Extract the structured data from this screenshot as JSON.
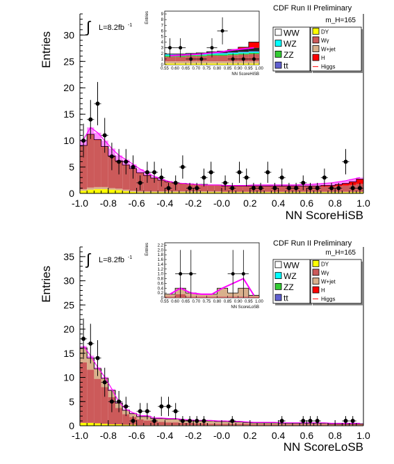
{
  "chart_data": [
    {
      "type": "area",
      "subtype": "stacked-histogram",
      "title": "CDF Run II Preliminary",
      "mass_label": "m_H=165",
      "lumi_label": "L=8.2fb",
      "lumi_sup": "-1",
      "xlabel": "NN ScoreHiSB",
      "ylabel": "Entries",
      "xlim": [
        -1.0,
        1.0
      ],
      "ylim": [
        0,
        34
      ],
      "xticks": [
        "-1.0",
        "-0.8",
        "-0.6",
        "-0.4",
        "-0.2",
        "-0.0",
        "0.2",
        "0.4",
        "0.6",
        "0.8",
        "1.0"
      ],
      "yticks": [
        "0",
        "5",
        "10",
        "15",
        "20",
        "25",
        "30"
      ],
      "bins": 40,
      "series": [
        {
          "name": "DY",
          "color": "#ffff00",
          "values": [
            0.5,
            0.7,
            0.8,
            0.8,
            0.7,
            0.6,
            0.4,
            0.3,
            0.2,
            0.2,
            0.2,
            0.2,
            0.2,
            0.2,
            0.2,
            0.2,
            0.2,
            0.2,
            0.2,
            0.2,
            0.2,
            0.2,
            0.2,
            0.2,
            0.2,
            0.2,
            0.2,
            0.2,
            0.2,
            0.2,
            0.2,
            0.2,
            0.2,
            0.2,
            0.2,
            0.2,
            0.2,
            0.2,
            0.2,
            0.2
          ]
        },
        {
          "name": "W+jet",
          "color": "#d9b08c",
          "values": [
            0.3,
            0.4,
            0.4,
            0.4,
            0.3,
            0.3,
            0.3,
            0.2,
            0.2,
            0.2,
            0.2,
            0.2,
            0.2,
            0.2,
            0.2,
            0.2,
            0.2,
            0.2,
            0.2,
            0.2,
            0.1,
            0.1,
            0.1,
            0.1,
            0.1,
            0.1,
            0.1,
            0.1,
            0.1,
            0.1,
            0.1,
            0.1,
            0.1,
            0.1,
            0.1,
            0.1,
            0.1,
            0.1,
            0.1,
            0.1
          ]
        },
        {
          "name": "WW",
          "color": "#cc5a5a",
          "values": [
            8.2,
            10.0,
            8.9,
            7.6,
            6.0,
            5.2,
            4.6,
            4.1,
            3.4,
            2.9,
            2.4,
            2.0,
            1.7,
            1.5,
            1.4,
            1.3,
            1.2,
            1.2,
            1.1,
            1.1,
            1.0,
            1.0,
            1.0,
            1.0,
            1.0,
            1.0,
            1.0,
            1.0,
            1.0,
            1.0,
            1.0,
            1.0,
            1.0,
            1.0,
            1.0,
            1.0,
            1.1,
            1.2,
            1.3,
            1.5
          ]
        },
        {
          "name": "H",
          "color": "#ff0000",
          "values": [
            0.1,
            0.1,
            0.1,
            0.1,
            0.1,
            0.1,
            0.1,
            0.1,
            0.1,
            0.1,
            0.1,
            0.1,
            0.1,
            0.1,
            0.1,
            0.1,
            0.1,
            0.1,
            0.1,
            0.1,
            0.1,
            0.1,
            0.1,
            0.1,
            0.1,
            0.1,
            0.1,
            0.1,
            0.1,
            0.1,
            0.1,
            0.1,
            0.1,
            0.1,
            0.2,
            0.2,
            0.3,
            0.4,
            0.6,
            0.9
          ]
        }
      ],
      "signal": {
        "name": "Higgs",
        "color": "#ff00ff",
        "values": [
          10.2,
          12.5,
          11.5,
          10.0,
          8.5,
          7.2,
          6.4,
          5.5,
          4.6,
          3.9,
          3.2,
          2.7,
          2.3,
          2.0,
          1.9,
          1.8,
          1.7,
          1.6,
          1.6,
          1.6,
          1.5,
          1.5,
          1.5,
          1.5,
          1.6,
          1.6,
          1.6,
          1.6,
          1.6,
          1.6,
          1.6,
          1.7,
          1.7,
          1.8,
          1.9,
          2.0,
          2.2,
          2.4,
          2.7,
          3.0
        ]
      },
      "data_points": {
        "x": [
          -0.975,
          -0.925,
          -0.875,
          -0.825,
          -0.775,
          -0.725,
          -0.675,
          -0.625,
          -0.575,
          -0.525,
          -0.475,
          -0.425,
          -0.375,
          -0.325,
          -0.275,
          -0.225,
          -0.175,
          -0.125,
          -0.075,
          -0.025,
          0.025,
          0.075,
          0.125,
          0.175,
          0.225,
          0.275,
          0.325,
          0.375,
          0.425,
          0.475,
          0.525,
          0.575,
          0.625,
          0.675,
          0.725,
          0.775,
          0.825,
          0.875,
          0.925,
          0.975
        ],
        "y": [
          10,
          14,
          17,
          11,
          7,
          6,
          6,
          5,
          2,
          4,
          4,
          3,
          1,
          2,
          5,
          1,
          1,
          3,
          4,
          0,
          2,
          1,
          4,
          3,
          1,
          1,
          4,
          1,
          3,
          1,
          1,
          2,
          1,
          1,
          3,
          1,
          1,
          6,
          1,
          1
        ],
        "err": [
          3.2,
          3.7,
          4.1,
          3.3,
          2.6,
          2.4,
          2.4,
          2.2,
          1.4,
          2.0,
          2.0,
          1.7,
          1.0,
          1.4,
          2.2,
          1.0,
          1.0,
          1.7,
          2.0,
          0,
          1.4,
          1.0,
          2.0,
          1.7,
          1.0,
          1.0,
          2.0,
          1.0,
          1.7,
          1.0,
          1.0,
          1.4,
          1.0,
          1.0,
          1.7,
          1.0,
          1.0,
          2.4,
          1.0,
          1.0
        ]
      },
      "inset": {
        "ylabel": "Entries",
        "xlabel": "NN ScoreHiSB",
        "xlim": [
          0.55,
          1.0
        ],
        "ylim": [
          0,
          9.5
        ],
        "xticks": [
          "0.55",
          "0.60",
          "0.65",
          "0.70",
          "0.75",
          "0.80",
          "0.85",
          "0.90",
          "0.95",
          "1.00"
        ],
        "yticks": [
          "0",
          "1",
          "2",
          "3",
          "4",
          "5",
          "6",
          "7",
          "8",
          "9"
        ],
        "bins": 9,
        "series": [
          {
            "name": "DY",
            "color": "#ffff00",
            "values": [
              0.2,
              0.2,
              0.2,
              0.2,
              0.2,
              0.2,
              0.2,
              0.2,
              0.2
            ]
          },
          {
            "name": "W+jet",
            "color": "#d9b08c",
            "values": [
              0.4,
              0.4,
              0.4,
              0.4,
              0.4,
              0.4,
              0.4,
              0.4,
              0.4
            ]
          },
          {
            "name": "WW",
            "color": "#cc5a5a",
            "values": [
              0.8,
              0.8,
              0.9,
              0.9,
              1.0,
              1.0,
              1.1,
              1.2,
              1.3
            ]
          },
          {
            "name": "ZZ",
            "color": "#33cc33",
            "values": [
              0.2,
              0.2,
              0.2,
              0.2,
              0.2,
              0.2,
              0.2,
              0.2,
              0.2
            ]
          },
          {
            "name": "WZ",
            "color": "#00ffff",
            "values": [
              0.2,
              0.2,
              0.2,
              0.2,
              0.2,
              0.2,
              0.2,
              0.2,
              0.2
            ]
          },
          {
            "name": "tt",
            "color": "#6060d0",
            "values": [
              0.1,
              0.1,
              0.1,
              0.1,
              0.1,
              0.1,
              0.1,
              0.1,
              0.1
            ]
          },
          {
            "name": "WW top",
            "color": "#222222",
            "values": [
              0.0,
              0.0,
              0.0,
              0.1,
              0.2,
              0.3,
              0.4,
              0.5,
              0.6
            ]
          },
          {
            "name": "H",
            "color": "#ff0000",
            "values": [
              0.0,
              0.0,
              0.0,
              0.0,
              0.0,
              0.0,
              0.1,
              0.3,
              1.0
            ]
          }
        ],
        "signal": {
          "name": "Higgs",
          "color": "#ff00ff",
          "values": [
            1.6,
            1.7,
            1.8,
            1.9,
            2.1,
            2.3,
            2.6,
            2.8,
            3.0
          ]
        },
        "data_points": {
          "x": [
            0.575,
            0.625,
            0.675,
            0.725,
            0.775,
            0.825,
            0.875,
            0.925,
            0.975
          ],
          "y": [
            3,
            3,
            1,
            1,
            3,
            6,
            1,
            1,
            1
          ],
          "err": [
            1.7,
            1.7,
            1.0,
            1.0,
            1.7,
            2.4,
            1.0,
            1.0,
            1.0
          ]
        }
      },
      "legend_left": [
        {
          "label": "WW",
          "color": "#ffffff"
        },
        {
          "label": "WZ",
          "color": "#00ffff"
        },
        {
          "label": "ZZ",
          "color": "#33cc33"
        },
        {
          "label": "tt",
          "color": "#6060d0",
          "tt": true
        }
      ],
      "legend_right": [
        {
          "label": "DY",
          "color": "#ffff00"
        },
        {
          "label": "Wγ",
          "color": "#cc5a5a"
        },
        {
          "label": "W+jet",
          "color": "#d9b08c"
        },
        {
          "label": "H",
          "color": "#ff0000"
        },
        {
          "label": "Higgs",
          "color": "#ff0000",
          "line": true
        }
      ]
    },
    {
      "type": "area",
      "subtype": "stacked-histogram",
      "title": "CDF Run II Preliminary",
      "mass_label": "m_H=165",
      "lumi_label": "L=8.2fb",
      "lumi_sup": "-1",
      "xlabel": "NN ScoreLoSB",
      "ylabel": "Entries",
      "xlim": [
        -1.0,
        1.0
      ],
      "ylim": [
        0,
        37
      ],
      "xticks": [
        "-1.0",
        "-0.8",
        "-0.6",
        "-0.4",
        "-0.2",
        "-0.0",
        "0.2",
        "0.4",
        "0.6",
        "0.8",
        "1.0"
      ],
      "yticks": [
        "0",
        "5",
        "10",
        "15",
        "20",
        "25",
        "30",
        "35"
      ],
      "bins": 40,
      "series": [
        {
          "name": "DY",
          "color": "#ffff00",
          "values": [
            0.6,
            0.6,
            0.5,
            0.4,
            0.3,
            0.3,
            0.2,
            0.2,
            0.1,
            0.1,
            0.1,
            0.1,
            0.1,
            0.1,
            0.1,
            0.1,
            0.1,
            0.1,
            0.1,
            0.1,
            0.1,
            0.1,
            0.1,
            0.1,
            0.1,
            0.1,
            0.1,
            0.1,
            0.1,
            0.1,
            0.1,
            0.1,
            0.1,
            0.1,
            0.1,
            0.1,
            0.1,
            0.1,
            0.1,
            0.1
          ]
        },
        {
          "name": "WW",
          "color": "#cc5a5a",
          "values": [
            12.5,
            11.0,
            9.2,
            7.6,
            5.6,
            3.4,
            2.2,
            1.6,
            1.2,
            1.0,
            0.8,
            0.7,
            0.6,
            0.6,
            0.5,
            0.5,
            0.4,
            0.4,
            0.3,
            0.3,
            0.3,
            0.3,
            0.3,
            0.3,
            0.2,
            0.2,
            0.2,
            0.2,
            0.2,
            0.2,
            0.2,
            0.2,
            0.2,
            0.2,
            0.2,
            0.2,
            0.2,
            0.2,
            0.2,
            0.2
          ]
        },
        {
          "name": "W+jet",
          "color": "#d9b08c",
          "values": [
            3.0,
            2.4,
            2.1,
            1.8,
            1.4,
            1.0,
            0.8,
            0.7,
            0.6,
            0.8,
            0.6,
            0.7,
            0.7,
            0.7,
            0.6,
            0.5,
            0.5,
            0.5,
            0.6,
            0.5,
            0.5,
            0.4,
            0.4,
            0.3,
            0.3,
            0.3,
            0.3,
            0.3,
            0.2,
            0.2,
            0.2,
            0.2,
            0.2,
            0.2,
            0.2,
            0.1,
            0.1,
            0.1,
            0.1,
            0.1
          ]
        }
      ],
      "signal": {
        "name": "Higgs",
        "color": "#ff00ff",
        "values": [
          16.5,
          14.5,
          12.1,
          10.1,
          7.6,
          4.9,
          3.4,
          2.7,
          2.1,
          2.1,
          1.6,
          1.6,
          1.5,
          1.5,
          1.3,
          1.2,
          1.1,
          1.1,
          1.1,
          1.0,
          1.0,
          0.9,
          0.9,
          0.8,
          0.7,
          0.7,
          0.7,
          0.7,
          0.6,
          0.6,
          0.6,
          0.6,
          0.6,
          0.6,
          0.6,
          0.5,
          0.5,
          0.5,
          0.5,
          0.5
        ]
      },
      "data_points": {
        "x": [
          -0.975,
          -0.925,
          -0.875,
          -0.825,
          -0.775,
          -0.725,
          -0.675,
          -0.625,
          -0.575,
          -0.525,
          -0.475,
          -0.425,
          -0.375,
          -0.325,
          -0.275,
          -0.225,
          -0.175,
          -0.125,
          -0.075,
          -0.025,
          0.025,
          0.075,
          0.125,
          0.175,
          0.225,
          0.275,
          0.325,
          0.375,
          0.425,
          0.475,
          0.525,
          0.575,
          0.625,
          0.675,
          0.725,
          0.775,
          0.825,
          0.875,
          0.925,
          0.975
        ],
        "y": [
          18,
          17,
          14,
          9,
          5,
          5,
          4,
          1,
          3,
          3,
          1,
          4,
          4,
          3,
          1,
          1,
          1,
          1,
          0,
          0,
          0,
          1,
          0,
          0,
          0,
          0,
          0,
          0,
          1,
          0,
          0,
          1,
          1,
          1,
          0,
          0,
          0,
          1,
          1,
          0
        ],
        "err": [
          4.2,
          4.1,
          3.7,
          3.0,
          2.2,
          2.2,
          2.0,
          1.0,
          1.7,
          1.7,
          1.0,
          2.0,
          2.0,
          1.7,
          1.0,
          1.0,
          1.0,
          1.0,
          0,
          0,
          0,
          1.0,
          0,
          0,
          0,
          0,
          0,
          0,
          1.0,
          0,
          0,
          1.0,
          1.0,
          1.0,
          0,
          0,
          0,
          1.0,
          1.0,
          0
        ]
      },
      "inset": {
        "ylabel": "Entries",
        "xlabel": "NN ScoreLoSB",
        "xlim": [
          0.55,
          1.0
        ],
        "ylim": [
          0,
          2.3
        ],
        "xticks": [
          "0.55",
          "0.60",
          "0.65",
          "0.70",
          "0.75",
          "0.80",
          "0.85",
          "0.90",
          "0.95",
          "1.00"
        ],
        "yticks": [
          "0",
          "0.2",
          "0.4",
          "0.6",
          "0.8",
          "1.0",
          "1.2",
          "1.4",
          "1.6",
          "1.8",
          "2.0",
          "2.2"
        ],
        "bins": 9,
        "series": [
          {
            "name": "WW",
            "color": "#cc5a5a",
            "values": [
              0.05,
              0.15,
              0.05,
              0.05,
              0.05,
              0.05,
              0.05,
              0.05,
              0.05
            ]
          },
          {
            "name": "W+jet",
            "color": "#d9b08c",
            "values": [
              0.1,
              0.25,
              0.15,
              0.1,
              0.1,
              0.35,
              0.15,
              0.35,
              0.05
            ]
          }
        ],
        "signal": {
          "name": "Higgs",
          "color": "#ff00ff",
          "values": [
            0.15,
            0.4,
            0.2,
            0.15,
            0.15,
            0.4,
            0.6,
            0.8,
            0.1
          ]
        },
        "data_points": {
          "x": [
            0.575,
            0.625,
            0.675,
            0.725,
            0.775,
            0.825,
            0.875,
            0.925,
            0.975
          ],
          "y": [
            0,
            1,
            1,
            0,
            0,
            0,
            1,
            1,
            0
          ],
          "err": [
            0,
            1.0,
            1.0,
            0,
            0,
            0,
            1.0,
            1.0,
            0
          ]
        }
      },
      "legend_left": [
        {
          "label": "WW",
          "color": "#ffffff"
        },
        {
          "label": "WZ",
          "color": "#00ffff"
        },
        {
          "label": "ZZ",
          "color": "#33cc33"
        },
        {
          "label": "tt",
          "color": "#6060d0",
          "tt": true
        }
      ],
      "legend_right": [
        {
          "label": "DY",
          "color": "#ffff00"
        },
        {
          "label": "Wγ",
          "color": "#cc5a5a"
        },
        {
          "label": "W+jet",
          "color": "#d9b08c"
        },
        {
          "label": "H",
          "color": "#ff0000"
        },
        {
          "label": "Higgs",
          "color": "#ff0000",
          "line": true
        }
      ]
    }
  ]
}
